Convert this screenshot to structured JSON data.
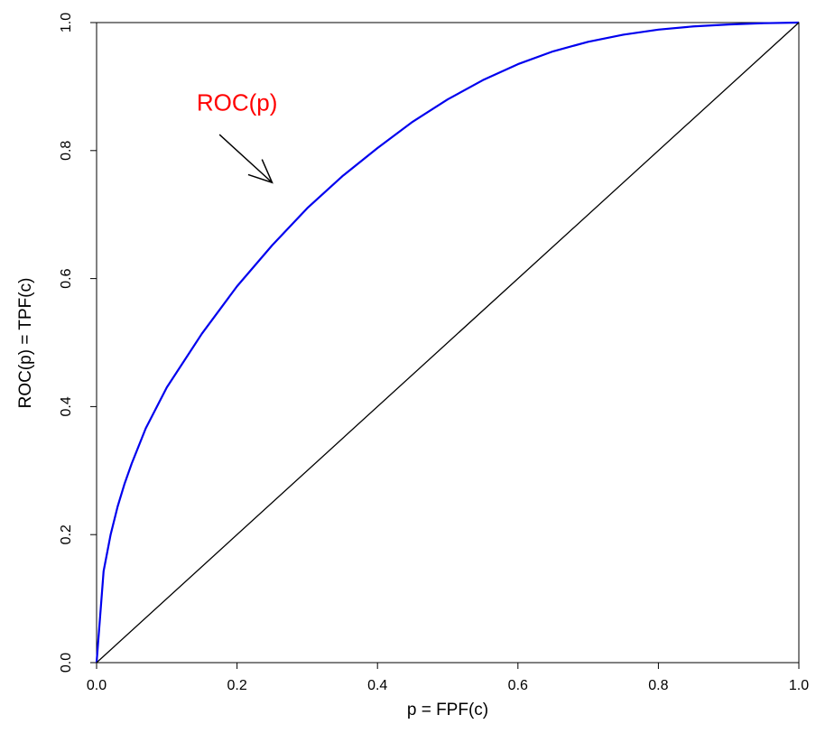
{
  "chart_data": {
    "type": "line",
    "title": "",
    "xlabel": "p = FPF(c)",
    "ylabel": "ROC(p) = TPF(c)",
    "xlim": [
      0,
      1
    ],
    "ylim": [
      0,
      1
    ],
    "x_ticks": [
      "0.0",
      "0.2",
      "0.4",
      "0.6",
      "0.8",
      "1.0"
    ],
    "y_ticks": [
      "0.0",
      "0.2",
      "0.4",
      "0.6",
      "0.8",
      "1.0"
    ],
    "grid": false,
    "series": [
      {
        "color": "#0000ee",
        "points": [
          [
            0.0,
            0.0
          ],
          [
            0.01,
            0.143
          ],
          [
            0.02,
            0.2
          ],
          [
            0.03,
            0.244
          ],
          [
            0.04,
            0.28
          ],
          [
            0.05,
            0.311
          ],
          [
            0.07,
            0.366
          ],
          [
            0.1,
            0.43
          ],
          [
            0.15,
            0.514
          ],
          [
            0.2,
            0.588
          ],
          [
            0.25,
            0.652
          ],
          [
            0.3,
            0.71
          ],
          [
            0.35,
            0.76
          ],
          [
            0.4,
            0.804
          ],
          [
            0.45,
            0.845
          ],
          [
            0.5,
            0.88
          ],
          [
            0.55,
            0.91
          ],
          [
            0.6,
            0.935
          ],
          [
            0.65,
            0.955
          ],
          [
            0.7,
            0.97
          ],
          [
            0.75,
            0.981
          ],
          [
            0.8,
            0.989
          ],
          [
            0.85,
            0.994
          ],
          [
            0.9,
            0.997
          ],
          [
            0.95,
            0.999
          ],
          [
            1.0,
            1.0
          ]
        ]
      },
      {
        "color": "#000000",
        "points": [
          [
            0,
            0
          ],
          [
            1,
            1
          ]
        ]
      }
    ],
    "annotations": [
      {
        "text": "ROC(p)",
        "color": "#ff0000",
        "text_at": [
          0.2,
          0.875
        ],
        "arrow_from": [
          0.175,
          0.825
        ],
        "arrow_to": [
          0.25,
          0.75
        ]
      }
    ]
  }
}
